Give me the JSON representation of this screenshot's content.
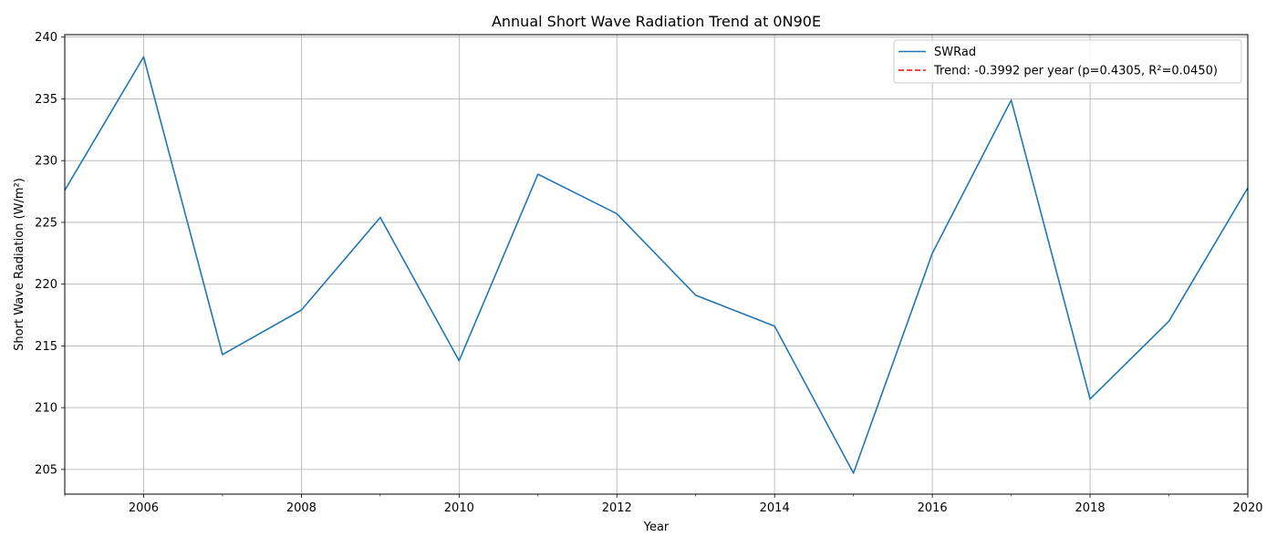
{
  "chart_data": {
    "type": "line",
    "title": "Annual Short Wave Radiation Trend at 0N90E",
    "xlabel": "Year",
    "ylabel": "Short Wave Radiation (W/m²)",
    "xlim": [
      2005,
      2020
    ],
    "ylim": [
      203,
      240.2
    ],
    "xticks": [
      2006,
      2008,
      2010,
      2012,
      2014,
      2016,
      2018,
      2020
    ],
    "xticklabels": [
      "2006",
      "2008",
      "2010",
      "2012",
      "2014",
      "2016",
      "2018",
      "2020"
    ],
    "xminorticks": [
      2005,
      2007,
      2009,
      2011,
      2013,
      2015,
      2017,
      2019
    ],
    "yticks": [
      205,
      210,
      215,
      220,
      225,
      230,
      235,
      240
    ],
    "yticklabels": [
      "205",
      "210",
      "215",
      "220",
      "225",
      "230",
      "235",
      "240"
    ],
    "grid": true,
    "legend_position": "top-right",
    "series": [
      {
        "name": "SWRad",
        "color": "#1f77b4",
        "style": "solid",
        "x": [
          2005,
          2006,
          2007,
          2008,
          2009,
          2010,
          2011,
          2012,
          2013,
          2014,
          2015,
          2016,
          2017,
          2018,
          2019,
          2020
        ],
        "y": [
          227.6,
          238.4,
          214.3,
          217.9,
          225.4,
          213.8,
          228.9,
          225.7,
          219.1,
          216.6,
          204.7,
          222.5,
          234.9,
          210.7,
          217.0,
          227.8
        ]
      },
      {
        "name": "Trend: -0.3992 per year (p=0.4305, R²=0.0450)",
        "color": "#ff0000",
        "style": "dashed",
        "x": [],
        "y": []
      }
    ]
  }
}
